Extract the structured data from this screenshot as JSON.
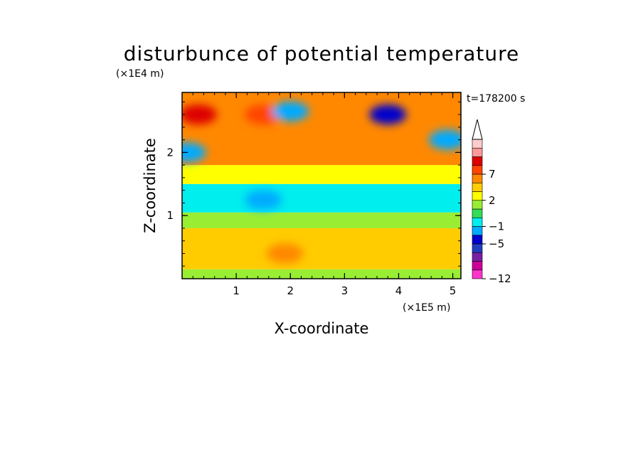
{
  "chart_data": {
    "type": "heatmap",
    "title": "disturbunce of potential temperature",
    "xlabel": "X-coordinate",
    "ylabel": "Z-coordinate",
    "x_units_label": "(×1E5 m)",
    "y_units_label": "(×1E4 m)",
    "time_label": "t=178200 s",
    "xlim": [
      0,
      5.15
    ],
    "ylim": [
      0,
      2.95
    ],
    "x_ticks": [
      "1",
      "2",
      "3",
      "4",
      "5"
    ],
    "y_ticks": [
      "1",
      "2"
    ],
    "colorbar": {
      "levels": [
        -12,
        -11,
        -9,
        -7,
        -5,
        -3,
        -1,
        0,
        1,
        2,
        3,
        5,
        7,
        9,
        11
      ],
      "tick_labels": [
        "7",
        "2",
        "−1",
        "−5",
        "−12"
      ],
      "colors": [
        "#ff33cc",
        "#cc0099",
        "#7a1fa2",
        "#1f3fbf",
        "#0000cc",
        "#00aaff",
        "#00eeee",
        "#33dd55",
        "#99ee33",
        "#ffff00",
        "#ffcc00",
        "#ff8800",
        "#ff4400",
        "#dd0000",
        "#ff9999",
        "#ffcccc"
      ],
      "extend": "max"
    },
    "field_bands": [
      {
        "z_from": 0.0,
        "z_to": 0.15,
        "value": 0.5
      },
      {
        "z_from": 0.15,
        "z_to": 0.8,
        "value": 2.3
      },
      {
        "z_from": 0.8,
        "z_to": 1.05,
        "value": 0.5
      },
      {
        "z_from": 1.05,
        "z_to": 1.5,
        "value": -1.5
      },
      {
        "z_from": 1.5,
        "z_to": 1.8,
        "value": 1.5
      },
      {
        "z_from": 1.8,
        "z_to": 2.95,
        "value": 3.5
      }
    ],
    "features": [
      {
        "x": 0.3,
        "z": 2.6,
        "value": 8
      },
      {
        "x": 1.5,
        "z": 2.6,
        "value": 5
      },
      {
        "x": 2.0,
        "z": 2.65,
        "value": -5
      },
      {
        "x": 3.8,
        "z": 2.6,
        "value": -6
      },
      {
        "x": 0.1,
        "z": 2.0,
        "value": -5
      },
      {
        "x": 1.5,
        "z": 1.25,
        "value": -5
      },
      {
        "x": 1.9,
        "z": 0.4,
        "value": 4
      },
      {
        "x": 4.9,
        "z": 2.2,
        "value": -5
      }
    ]
  }
}
